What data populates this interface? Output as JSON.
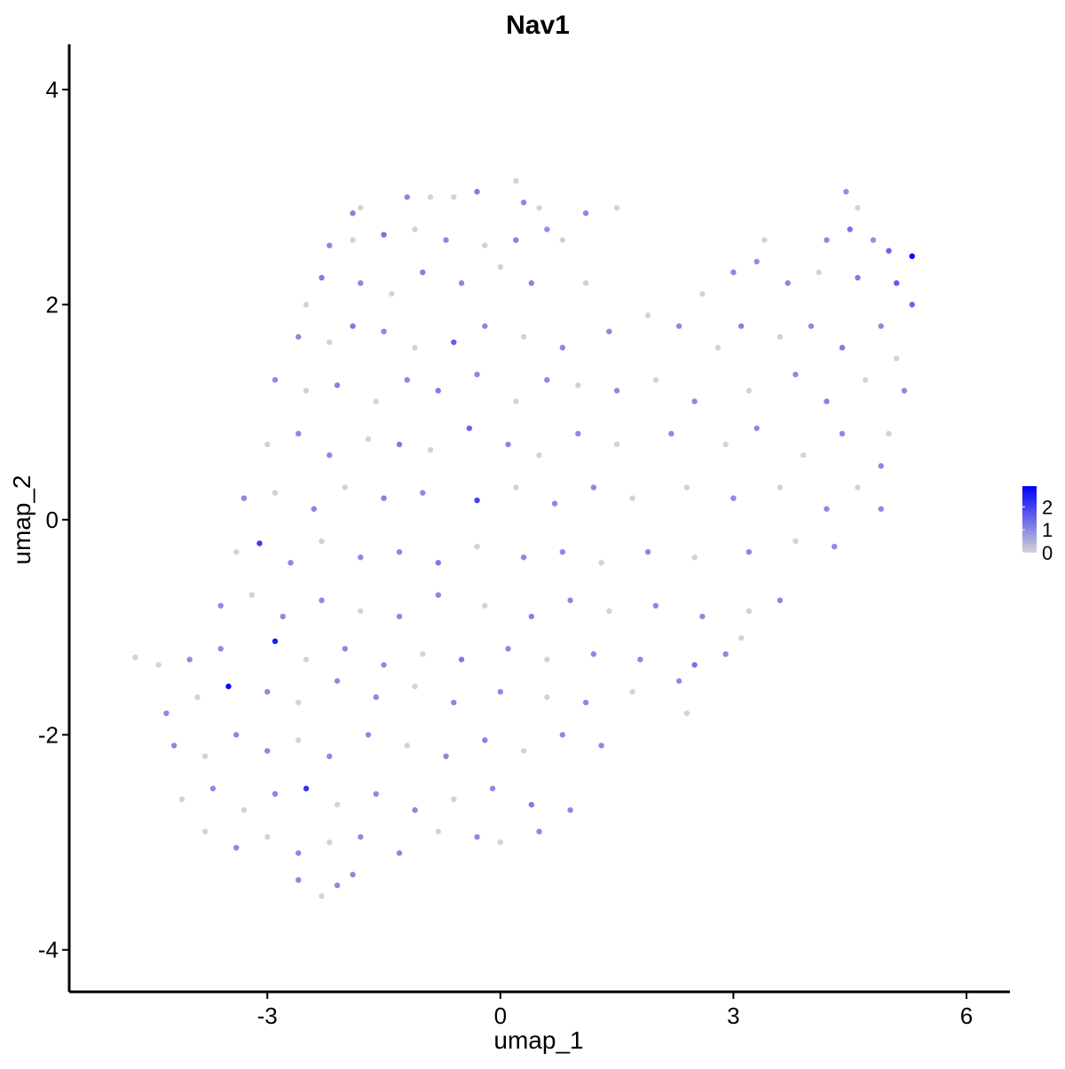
{
  "chart_data": {
    "type": "scatter",
    "title": "Nav1",
    "x_label": "umap_1",
    "y_label": "umap_2",
    "xlim": [
      -5.55,
      6.56
    ],
    "ylim": [
      -4.39,
      4.42
    ],
    "xticks": [
      -3,
      0,
      3,
      6
    ],
    "yticks": [
      -4,
      -2,
      0,
      2,
      4
    ],
    "color_low": "#d3d3d3",
    "color_high": "#0000ff",
    "colorbar_lim": [
      0,
      2.9
    ],
    "colorbar_ticks": [
      0,
      1,
      2
    ],
    "points": [
      [
        -1.2,
        3.0,
        1
      ],
      [
        -0.9,
        3.0,
        0
      ],
      [
        -0.6,
        3.0,
        0
      ],
      [
        -0.3,
        3.05,
        1.2
      ],
      [
        0.2,
        3.15,
        0
      ],
      [
        0.3,
        2.95,
        1
      ],
      [
        0.5,
        2.9,
        0
      ],
      [
        1.1,
        2.85,
        1
      ],
      [
        1.5,
        2.9,
        0
      ],
      [
        -1.8,
        2.9,
        0
      ],
      [
        -1.9,
        2.85,
        1.1
      ],
      [
        4.45,
        3.05,
        0.9
      ],
      [
        4.6,
        2.9,
        0
      ],
      [
        -2.2,
        2.55,
        1
      ],
      [
        -1.9,
        2.6,
        0
      ],
      [
        -1.5,
        2.65,
        1.3
      ],
      [
        -1.1,
        2.7,
        0
      ],
      [
        -0.7,
        2.6,
        1
      ],
      [
        -0.2,
        2.55,
        0
      ],
      [
        0.2,
        2.6,
        1.1
      ],
      [
        0.6,
        2.7,
        0.9
      ],
      [
        0.8,
        2.6,
        0
      ],
      [
        4.2,
        2.6,
        1
      ],
      [
        4.5,
        2.7,
        1.3
      ],
      [
        4.8,
        2.6,
        0.9
      ],
      [
        5.0,
        2.5,
        1.5
      ],
      [
        5.3,
        2.45,
        2.8
      ],
      [
        3.4,
        2.6,
        0
      ],
      [
        -2.5,
        2.0,
        0
      ],
      [
        -2.3,
        2.25,
        1.2
      ],
      [
        -1.8,
        2.2,
        1
      ],
      [
        -1.4,
        2.1,
        0
      ],
      [
        -1.0,
        2.3,
        1.1
      ],
      [
        -0.5,
        2.2,
        1
      ],
      [
        0.0,
        2.35,
        0
      ],
      [
        0.4,
        2.2,
        1
      ],
      [
        1.1,
        2.2,
        0
      ],
      [
        3.0,
        2.3,
        1
      ],
      [
        3.3,
        2.4,
        0.9
      ],
      [
        3.7,
        2.2,
        1
      ],
      [
        4.1,
        2.3,
        0
      ],
      [
        4.6,
        2.25,
        1.2
      ],
      [
        5.1,
        2.2,
        1.6
      ],
      [
        5.3,
        2.0,
        1.5
      ],
      [
        2.6,
        2.1,
        0
      ],
      [
        -2.6,
        1.7,
        1
      ],
      [
        -2.2,
        1.65,
        0
      ],
      [
        -1.9,
        1.8,
        1.2
      ],
      [
        -1.5,
        1.75,
        1
      ],
      [
        -1.1,
        1.6,
        0
      ],
      [
        -0.6,
        1.65,
        1.6
      ],
      [
        -0.2,
        1.8,
        1
      ],
      [
        0.3,
        1.7,
        0
      ],
      [
        0.8,
        1.6,
        1
      ],
      [
        1.4,
        1.75,
        1
      ],
      [
        1.9,
        1.9,
        0
      ],
      [
        2.3,
        1.8,
        1
      ],
      [
        2.8,
        1.6,
        0
      ],
      [
        3.1,
        1.8,
        1.1
      ],
      [
        3.6,
        1.7,
        0
      ],
      [
        4.0,
        1.8,
        1
      ],
      [
        4.4,
        1.6,
        1.2
      ],
      [
        4.9,
        1.8,
        1
      ],
      [
        5.1,
        1.5,
        0
      ],
      [
        -2.9,
        1.3,
        1
      ],
      [
        -2.5,
        1.2,
        0
      ],
      [
        -2.1,
        1.25,
        1.1
      ],
      [
        -1.6,
        1.1,
        0
      ],
      [
        -1.2,
        1.3,
        1
      ],
      [
        -0.8,
        1.2,
        1.2
      ],
      [
        -0.3,
        1.35,
        1
      ],
      [
        0.2,
        1.1,
        0
      ],
      [
        0.6,
        1.3,
        1
      ],
      [
        1.0,
        1.25,
        0
      ],
      [
        1.5,
        1.2,
        1
      ],
      [
        2.0,
        1.3,
        0
      ],
      [
        2.5,
        1.1,
        1
      ],
      [
        3.2,
        1.2,
        0
      ],
      [
        3.8,
        1.35,
        1
      ],
      [
        4.2,
        1.1,
        1.1
      ],
      [
        4.7,
        1.3,
        0
      ],
      [
        5.2,
        1.2,
        1
      ],
      [
        -3.0,
        0.7,
        0
      ],
      [
        -2.6,
        0.8,
        1
      ],
      [
        -2.2,
        0.6,
        1
      ],
      [
        -1.7,
        0.75,
        0
      ],
      [
        -1.3,
        0.7,
        1.2
      ],
      [
        -0.9,
        0.65,
        0
      ],
      [
        -0.4,
        0.85,
        1.5
      ],
      [
        0.1,
        0.7,
        1
      ],
      [
        0.5,
        0.6,
        0
      ],
      [
        1.0,
        0.8,
        1
      ],
      [
        1.5,
        0.7,
        0
      ],
      [
        2.2,
        0.8,
        1
      ],
      [
        2.9,
        0.7,
        0
      ],
      [
        3.3,
        0.85,
        1
      ],
      [
        3.9,
        0.6,
        0
      ],
      [
        4.4,
        0.8,
        1
      ],
      [
        4.9,
        0.5,
        1
      ],
      [
        5.0,
        0.8,
        0
      ],
      [
        -3.3,
        0.2,
        1
      ],
      [
        -2.9,
        0.25,
        0
      ],
      [
        -2.4,
        0.1,
        1
      ],
      [
        -2.0,
        0.3,
        0
      ],
      [
        -1.5,
        0.2,
        1.1
      ],
      [
        -1.0,
        0.25,
        1
      ],
      [
        -0.3,
        0.18,
        2.0
      ],
      [
        0.2,
        0.3,
        0
      ],
      [
        0.7,
        0.15,
        1
      ],
      [
        1.2,
        0.3,
        1
      ],
      [
        1.7,
        0.2,
        0
      ],
      [
        2.4,
        0.3,
        0
      ],
      [
        3.0,
        0.2,
        1
      ],
      [
        3.6,
        0.3,
        0
      ],
      [
        4.2,
        0.1,
        1
      ],
      [
        4.6,
        0.3,
        0
      ],
      [
        4.9,
        0.1,
        1
      ],
      [
        -3.4,
        -0.3,
        0
      ],
      [
        -3.1,
        -0.22,
        2.1
      ],
      [
        -2.7,
        -0.4,
        1
      ],
      [
        -2.3,
        -0.2,
        0
      ],
      [
        -1.8,
        -0.35,
        1
      ],
      [
        -1.3,
        -0.3,
        1
      ],
      [
        -0.8,
        -0.4,
        1.2
      ],
      [
        -0.3,
        -0.25,
        0
      ],
      [
        0.3,
        -0.35,
        1
      ],
      [
        0.8,
        -0.3,
        1
      ],
      [
        1.3,
        -0.4,
        0
      ],
      [
        1.9,
        -0.3,
        1
      ],
      [
        2.5,
        -0.35,
        0
      ],
      [
        3.2,
        -0.3,
        1
      ],
      [
        3.8,
        -0.2,
        0
      ],
      [
        4.3,
        -0.25,
        1
      ],
      [
        -3.6,
        -0.8,
        1
      ],
      [
        -3.2,
        -0.7,
        0
      ],
      [
        -2.8,
        -0.9,
        1
      ],
      [
        -2.3,
        -0.75,
        1
      ],
      [
        -1.8,
        -0.85,
        0
      ],
      [
        -1.3,
        -0.9,
        1
      ],
      [
        -0.8,
        -0.7,
        1
      ],
      [
        -0.2,
        -0.8,
        0
      ],
      [
        0.4,
        -0.9,
        1.1
      ],
      [
        0.9,
        -0.75,
        1
      ],
      [
        1.4,
        -0.85,
        0
      ],
      [
        2.0,
        -0.8,
        1
      ],
      [
        2.6,
        -0.9,
        1
      ],
      [
        3.2,
        -0.85,
        0
      ],
      [
        3.6,
        -0.75,
        1
      ],
      [
        -4.7,
        -1.28,
        0
      ],
      [
        -4.4,
        -1.35,
        0
      ],
      [
        -4.0,
        -1.3,
        1
      ],
      [
        -3.6,
        -1.2,
        1
      ],
      [
        -2.9,
        -1.13,
        2.5
      ],
      [
        -2.5,
        -1.3,
        0
      ],
      [
        -2.0,
        -1.2,
        1
      ],
      [
        -1.5,
        -1.35,
        1
      ],
      [
        -1.0,
        -1.25,
        0
      ],
      [
        -0.5,
        -1.3,
        1.2
      ],
      [
        0.1,
        -1.2,
        1
      ],
      [
        0.6,
        -1.3,
        0
      ],
      [
        1.2,
        -1.25,
        1
      ],
      [
        1.8,
        -1.3,
        1
      ],
      [
        2.5,
        -1.35,
        1.3
      ],
      [
        3.1,
        -1.1,
        0
      ],
      [
        2.9,
        -1.25,
        1
      ],
      [
        -4.3,
        -1.8,
        1
      ],
      [
        -3.9,
        -1.65,
        0
      ],
      [
        -3.5,
        -1.55,
        2.8
      ],
      [
        -3.0,
        -1.6,
        1
      ],
      [
        -2.6,
        -1.7,
        0
      ],
      [
        -2.1,
        -1.5,
        1
      ],
      [
        -1.6,
        -1.65,
        1
      ],
      [
        -1.1,
        -1.55,
        0
      ],
      [
        -0.6,
        -1.7,
        1
      ],
      [
        0.0,
        -1.6,
        1
      ],
      [
        0.6,
        -1.65,
        0
      ],
      [
        1.1,
        -1.7,
        1
      ],
      [
        1.7,
        -1.6,
        0
      ],
      [
        2.3,
        -1.5,
        1
      ],
      [
        2.4,
        -1.8,
        0
      ],
      [
        -4.2,
        -2.1,
        1
      ],
      [
        -3.8,
        -2.2,
        0
      ],
      [
        -3.4,
        -2.0,
        1
      ],
      [
        -3.0,
        -2.15,
        1
      ],
      [
        -2.6,
        -2.05,
        0
      ],
      [
        -2.2,
        -2.2,
        1
      ],
      [
        -1.7,
        -2.0,
        1
      ],
      [
        -1.2,
        -2.1,
        0
      ],
      [
        -0.7,
        -2.2,
        1
      ],
      [
        -0.2,
        -2.05,
        1.1
      ],
      [
        0.3,
        -2.15,
        0
      ],
      [
        0.8,
        -2.0,
        1
      ],
      [
        1.3,
        -2.1,
        1
      ],
      [
        -4.1,
        -2.6,
        0
      ],
      [
        -3.7,
        -2.5,
        1
      ],
      [
        -3.3,
        -2.7,
        0
      ],
      [
        -2.9,
        -2.55,
        1
      ],
      [
        -2.5,
        -2.5,
        2.2
      ],
      [
        -2.1,
        -2.65,
        0
      ],
      [
        -1.6,
        -2.55,
        1
      ],
      [
        -1.1,
        -2.7,
        1
      ],
      [
        -0.6,
        -2.6,
        0
      ],
      [
        -0.1,
        -2.5,
        1
      ],
      [
        0.4,
        -2.65,
        1.2
      ],
      [
        0.9,
        -2.7,
        1
      ],
      [
        -3.8,
        -2.9,
        0
      ],
      [
        -3.4,
        -3.05,
        1
      ],
      [
        -3.0,
        -2.95,
        0
      ],
      [
        -2.6,
        -3.1,
        1
      ],
      [
        -2.2,
        -3.0,
        0
      ],
      [
        -1.8,
        -2.95,
        1
      ],
      [
        -1.3,
        -3.1,
        1
      ],
      [
        -0.8,
        -2.9,
        0
      ],
      [
        -0.3,
        -2.95,
        1
      ],
      [
        0.0,
        -3.0,
        0
      ],
      [
        0.5,
        -2.9,
        1
      ],
      [
        -2.6,
        -3.35,
        1
      ],
      [
        -2.3,
        -3.5,
        0
      ],
      [
        -2.1,
        -3.4,
        1
      ],
      [
        -1.9,
        -3.3,
        1
      ]
    ]
  }
}
